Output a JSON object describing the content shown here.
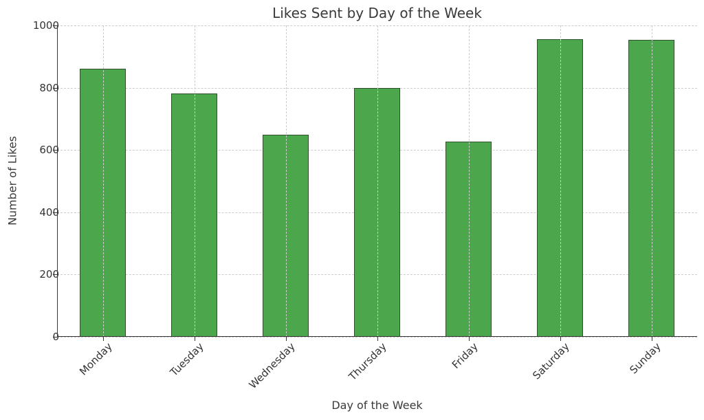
{
  "chart_data": {
    "type": "bar",
    "title": "Likes Sent by Day of the Week",
    "xlabel": "Day of the Week",
    "ylabel": "Number of Likes",
    "categories": [
      "Monday",
      "Tuesday",
      "Wednesday",
      "Thursday",
      "Friday",
      "Saturday",
      "Sunday"
    ],
    "values": [
      861,
      781,
      649,
      800,
      627,
      956,
      953
    ],
    "ylim": [
      0,
      1000
    ],
    "yticks": [
      0,
      200,
      400,
      600,
      800,
      1000
    ],
    "grid": true,
    "legend": null,
    "bar_color": "#4ca64c",
    "edge_color": "#2f4f2f"
  }
}
